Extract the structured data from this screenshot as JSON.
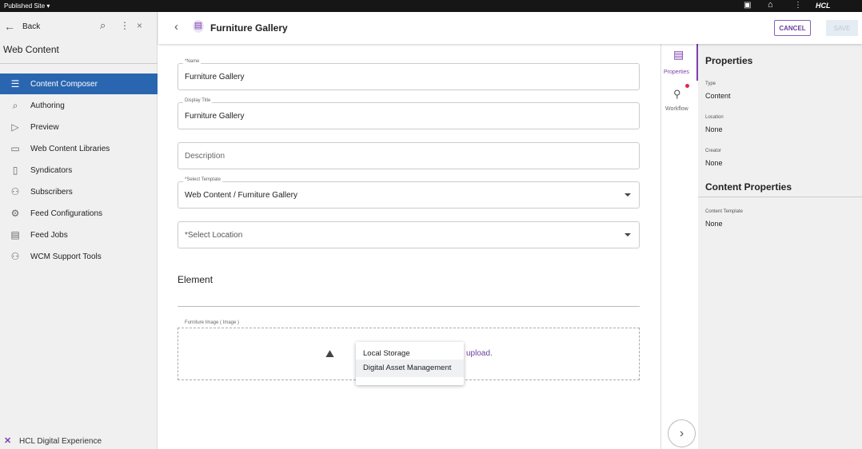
{
  "topbar": {
    "site": "Published Site",
    "brand": "HCL"
  },
  "sidebar": {
    "back": "Back",
    "title": "Web Content",
    "items": [
      {
        "label": "Content Composer",
        "icon": "list-icon"
      },
      {
        "label": "Authoring",
        "icon": "search-icon"
      },
      {
        "label": "Preview",
        "icon": "play-icon"
      },
      {
        "label": "Web Content Libraries",
        "icon": "folder-icon"
      },
      {
        "label": "Syndicators",
        "icon": "document-icon"
      },
      {
        "label": "Subscribers",
        "icon": "users-icon"
      },
      {
        "label": "Feed Configurations",
        "icon": "gear-icon"
      },
      {
        "label": "Feed Jobs",
        "icon": "clipboard-icon"
      },
      {
        "label": "WCM Support Tools",
        "icon": "users-icon"
      }
    ],
    "footer": "HCL Digital Experience"
  },
  "header": {
    "title": "Furniture Gallery",
    "cancel": "CANCEL",
    "save": "SAVE"
  },
  "form": {
    "name_label": "*Name",
    "name_value": "Furniture Gallery",
    "display_label": "Display Title",
    "display_value": "Furniture Gallery",
    "description_placeholder": "Description",
    "template_label": "*Select Template",
    "template_value": "Web Content / Furniture Gallery",
    "location_placeholder": "*Select Location",
    "element_heading": "Element",
    "image_label": "Furniture Image ( Image )",
    "upload_link": "upload.",
    "menu": [
      "Local Storage",
      "Digital Asset Management"
    ]
  },
  "rail": {
    "properties": "Properties",
    "workflow": "Workflow"
  },
  "props": {
    "title": "Properties",
    "type_label": "Type",
    "type_value": "Content",
    "location_label": "Location",
    "location_value": "None",
    "creator_label": "Creator",
    "creator_value": "None",
    "content_title": "Content Properties",
    "template_label": "Content Template",
    "template_value": "None"
  },
  "colors": {
    "accent": "#7a3fb0",
    "nav_active": "#2a66b0"
  }
}
